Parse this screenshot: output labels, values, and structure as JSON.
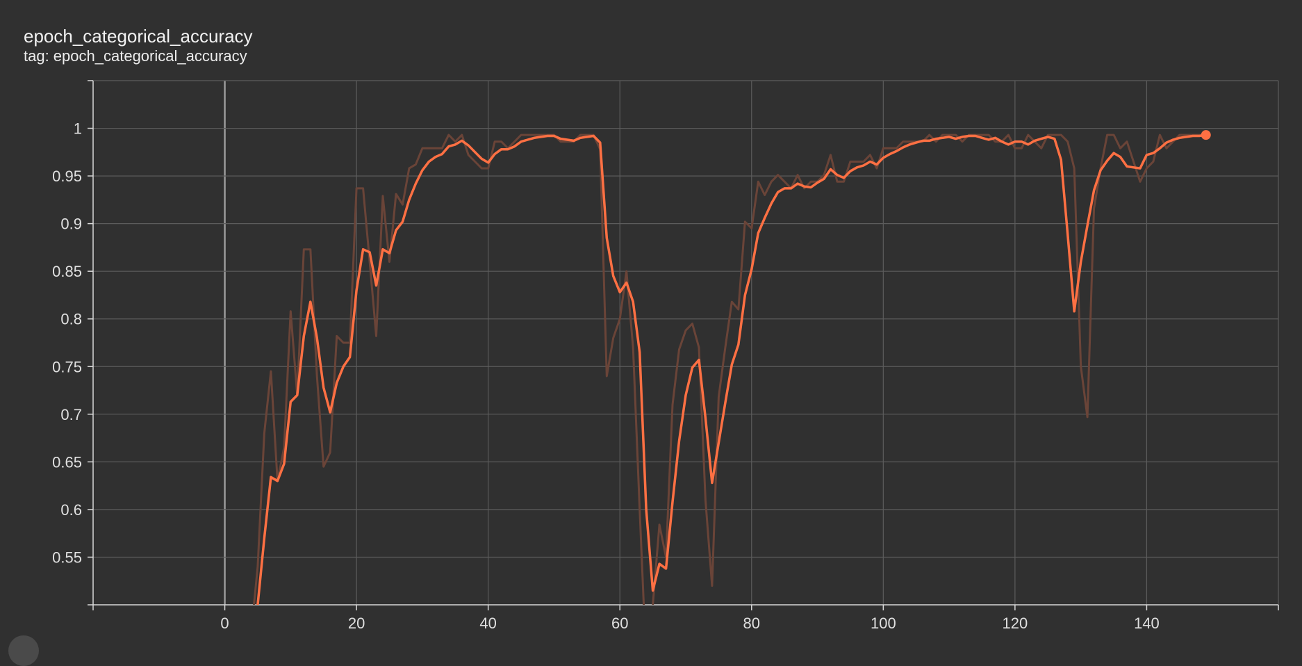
{
  "card": {
    "title": "epoch_categorical_accuracy",
    "tag": "tag: epoch_categorical_accuracy"
  },
  "colors": {
    "background": "#303030",
    "grid": "#5c5c5c",
    "axis": "#d8d8d8",
    "zero_line": "#9a9a9a",
    "smoothed": "#ff7043",
    "raw": "#6a4438"
  },
  "chart_data": {
    "type": "line",
    "title": "epoch_categorical_accuracy",
    "xlabel": "",
    "ylabel": "",
    "xlim": [
      -20,
      160
    ],
    "ylim": [
      0.5,
      1.05
    ],
    "x_ticks": [
      0,
      20,
      40,
      60,
      80,
      100,
      120,
      140
    ],
    "x_tick_labels": [
      "0",
      "20",
      "40",
      "60",
      "80",
      "100",
      "120",
      "140"
    ],
    "y_ticks": [
      0.55,
      0.6,
      0.65,
      0.7,
      0.75,
      0.8,
      0.85,
      0.9,
      0.95,
      1
    ],
    "y_tick_labels": [
      "0.55",
      "0.6",
      "0.65",
      "0.7",
      "0.75",
      "0.8",
      "0.85",
      "0.9",
      "0.95",
      "1"
    ],
    "grid": true,
    "series": [
      {
        "role": "raw",
        "x": [
          4,
          5,
          6,
          7,
          8,
          9,
          10,
          11,
          12,
          13,
          14,
          15,
          16,
          17,
          18,
          19,
          20,
          21,
          22,
          23,
          24,
          25,
          26,
          27,
          28,
          29,
          30,
          31,
          32,
          33,
          34,
          35,
          36,
          37,
          38,
          39,
          40,
          41,
          42,
          43,
          44,
          45,
          46,
          47,
          48,
          49,
          50,
          51,
          52,
          53,
          54,
          55,
          56,
          57,
          58,
          59,
          60,
          61,
          62,
          63,
          64,
          65,
          66,
          67,
          68,
          69,
          70,
          71,
          72,
          73,
          74,
          75,
          76,
          77,
          78,
          79,
          80,
          81,
          82,
          83,
          84,
          85,
          86,
          87,
          88,
          89,
          90,
          91,
          92,
          93,
          94,
          95,
          96,
          97,
          98,
          99,
          100,
          101,
          102,
          103,
          104,
          105,
          106,
          107,
          108,
          109,
          110,
          111,
          112,
          113,
          114,
          115,
          116,
          117,
          118,
          119,
          120,
          121,
          122,
          123,
          124,
          125,
          126,
          127,
          128,
          129,
          130,
          131,
          132,
          133,
          134,
          135,
          136,
          137,
          138,
          139,
          140,
          141,
          142,
          143,
          144,
          145,
          146,
          147,
          148,
          149
        ],
        "y": [
          0.47,
          0.54,
          0.68,
          0.745,
          0.63,
          0.665,
          0.808,
          0.72,
          0.873,
          0.873,
          0.74,
          0.645,
          0.66,
          0.782,
          0.775,
          0.775,
          0.937,
          0.937,
          0.86,
          0.782,
          0.929,
          0.86,
          0.931,
          0.92,
          0.958,
          0.962,
          0.979,
          0.979,
          0.979,
          0.979,
          0.993,
          0.986,
          0.993,
          0.972,
          0.965,
          0.958,
          0.958,
          0.986,
          0.986,
          0.979,
          0.986,
          0.993,
          0.993,
          0.993,
          0.993,
          0.993,
          0.993,
          0.986,
          0.986,
          0.986,
          0.993,
          0.993,
          0.993,
          0.978,
          0.74,
          0.78,
          0.8,
          0.85,
          0.77,
          0.6,
          0.44,
          0.5,
          0.584,
          0.55,
          0.71,
          0.768,
          0.788,
          0.795,
          0.77,
          0.61,
          0.52,
          0.718,
          0.77,
          0.818,
          0.81,
          0.902,
          0.895,
          0.944,
          0.93,
          0.944,
          0.951,
          0.944,
          0.937,
          0.951,
          0.937,
          0.944,
          0.944,
          0.951,
          0.972,
          0.944,
          0.944,
          0.965,
          0.965,
          0.965,
          0.972,
          0.958,
          0.979,
          0.979,
          0.979,
          0.986,
          0.986,
          0.986,
          0.986,
          0.993,
          0.986,
          0.993,
          0.993,
          0.993,
          0.986,
          0.993,
          0.993,
          0.993,
          0.993,
          0.986,
          0.986,
          0.993,
          0.979,
          0.979,
          0.993,
          0.986,
          0.979,
          0.993,
          0.993,
          0.993,
          0.986,
          0.958,
          0.75,
          0.697,
          0.916,
          0.958,
          0.993,
          0.993,
          0.979,
          0.986,
          0.965,
          0.944,
          0.958,
          0.965,
          0.993,
          0.979,
          0.986,
          0.993,
          0.993,
          0.993,
          0.993,
          0.993
        ]
      },
      {
        "role": "smoothed",
        "x": [
          5,
          6,
          7,
          8,
          9,
          10,
          11,
          12,
          13,
          14,
          15,
          16,
          17,
          18,
          19,
          20,
          21,
          22,
          23,
          24,
          25,
          26,
          27,
          28,
          29,
          30,
          31,
          32,
          33,
          34,
          35,
          36,
          37,
          38,
          39,
          40,
          41,
          42,
          43,
          44,
          45,
          46,
          47,
          48,
          49,
          50,
          51,
          52,
          53,
          54,
          55,
          56,
          57,
          58,
          59,
          60,
          61,
          62,
          63,
          64,
          65,
          66,
          67,
          68,
          69,
          70,
          71,
          72,
          73,
          74,
          75,
          76,
          77,
          78,
          79,
          80,
          81,
          82,
          83,
          84,
          85,
          86,
          87,
          88,
          89,
          90,
          91,
          92,
          93,
          94,
          95,
          96,
          97,
          98,
          99,
          100,
          101,
          102,
          103,
          104,
          105,
          106,
          107,
          108,
          109,
          110,
          111,
          112,
          113,
          114,
          115,
          116,
          117,
          118,
          119,
          120,
          121,
          122,
          123,
          124,
          125,
          126,
          127,
          128,
          129,
          130,
          131,
          132,
          133,
          134,
          135,
          136,
          137,
          138,
          139,
          140,
          141,
          142,
          143,
          144,
          145,
          146,
          147,
          148,
          149
        ],
        "y": [
          0.5,
          0.57,
          0.634,
          0.63,
          0.648,
          0.713,
          0.72,
          0.782,
          0.818,
          0.78,
          0.728,
          0.702,
          0.733,
          0.75,
          0.76,
          0.83,
          0.873,
          0.87,
          0.835,
          0.873,
          0.869,
          0.893,
          0.902,
          0.925,
          0.942,
          0.956,
          0.965,
          0.97,
          0.973,
          0.981,
          0.983,
          0.987,
          0.982,
          0.975,
          0.968,
          0.964,
          0.973,
          0.978,
          0.978,
          0.981,
          0.986,
          0.988,
          0.99,
          0.991,
          0.992,
          0.992,
          0.989,
          0.988,
          0.987,
          0.99,
          0.991,
          0.992,
          0.985,
          0.885,
          0.845,
          0.828,
          0.838,
          0.818,
          0.765,
          0.6,
          0.515,
          0.543,
          0.538,
          0.608,
          0.672,
          0.72,
          0.749,
          0.757,
          0.696,
          0.628,
          0.67,
          0.712,
          0.752,
          0.773,
          0.825,
          0.852,
          0.89,
          0.906,
          0.921,
          0.933,
          0.937,
          0.937,
          0.942,
          0.939,
          0.938,
          0.943,
          0.947,
          0.957,
          0.951,
          0.948,
          0.955,
          0.959,
          0.961,
          0.965,
          0.962,
          0.969,
          0.973,
          0.976,
          0.98,
          0.983,
          0.985,
          0.987,
          0.987,
          0.989,
          0.99,
          0.991,
          0.989,
          0.991,
          0.992,
          0.992,
          0.99,
          0.988,
          0.99,
          0.986,
          0.983,
          0.986,
          0.986,
          0.983,
          0.987,
          0.989,
          0.991,
          0.989,
          0.967,
          0.889,
          0.808,
          0.86,
          0.898,
          0.935,
          0.956,
          0.966,
          0.974,
          0.97,
          0.96,
          0.959,
          0.958,
          0.972,
          0.974,
          0.979,
          0.985,
          0.988,
          0.99,
          0.991,
          0.992,
          0.992,
          0.993
        ]
      }
    ]
  }
}
